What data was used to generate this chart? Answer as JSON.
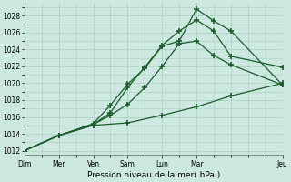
{
  "xlabel": "Pression niveau de la mer( hPa )",
  "background_color": "#cde8e0",
  "grid_color": "#a8cfc0",
  "line_color": "#1a5c2a",
  "xlim": [
    0,
    7.5
  ],
  "ylim": [
    1011.5,
    1029.5
  ],
  "yticks": [
    1012,
    1014,
    1016,
    1018,
    1020,
    1022,
    1024,
    1026,
    1028
  ],
  "xtick_labels": [
    "Dim",
    "Mer",
    "Ven",
    "Sam",
    "Lun",
    "Mar",
    "Jeu"
  ],
  "xtick_positions": [
    0,
    1,
    2,
    3,
    4,
    5,
    7.5
  ],
  "series": [
    {
      "x": [
        0,
        1,
        2,
        2.5,
        3,
        3.5,
        4,
        4.5,
        5,
        5.5,
        6,
        7.5
      ],
      "y": [
        1012,
        1013.8,
        1015.2,
        1017.4,
        1019.9,
        1021.8,
        1024.4,
        1025.0,
        1028.8,
        1027.4,
        1026.2,
        1019.8
      ]
    },
    {
      "x": [
        0,
        1,
        2,
        2.5,
        3,
        3.5,
        4,
        4.5,
        5,
        5.5,
        6,
        7.5
      ],
      "y": [
        1012,
        1013.8,
        1015.1,
        1016.5,
        1019.5,
        1021.9,
        1024.5,
        1026.2,
        1027.5,
        1026.2,
        1023.2,
        1021.9
      ]
    },
    {
      "x": [
        0,
        1,
        2,
        2.5,
        3,
        3.5,
        4,
        4.5,
        5,
        5.5,
        6,
        7.5
      ],
      "y": [
        1012,
        1013.8,
        1015.1,
        1016.2,
        1017.5,
        1019.5,
        1022.0,
        1024.7,
        1025.0,
        1023.3,
        1022.2,
        1019.8
      ]
    },
    {
      "x": [
        0,
        1,
        2,
        3,
        4,
        5,
        6,
        7.5
      ],
      "y": [
        1012,
        1013.8,
        1015.0,
        1015.3,
        1016.2,
        1017.2,
        1018.5,
        1020.0
      ]
    }
  ]
}
